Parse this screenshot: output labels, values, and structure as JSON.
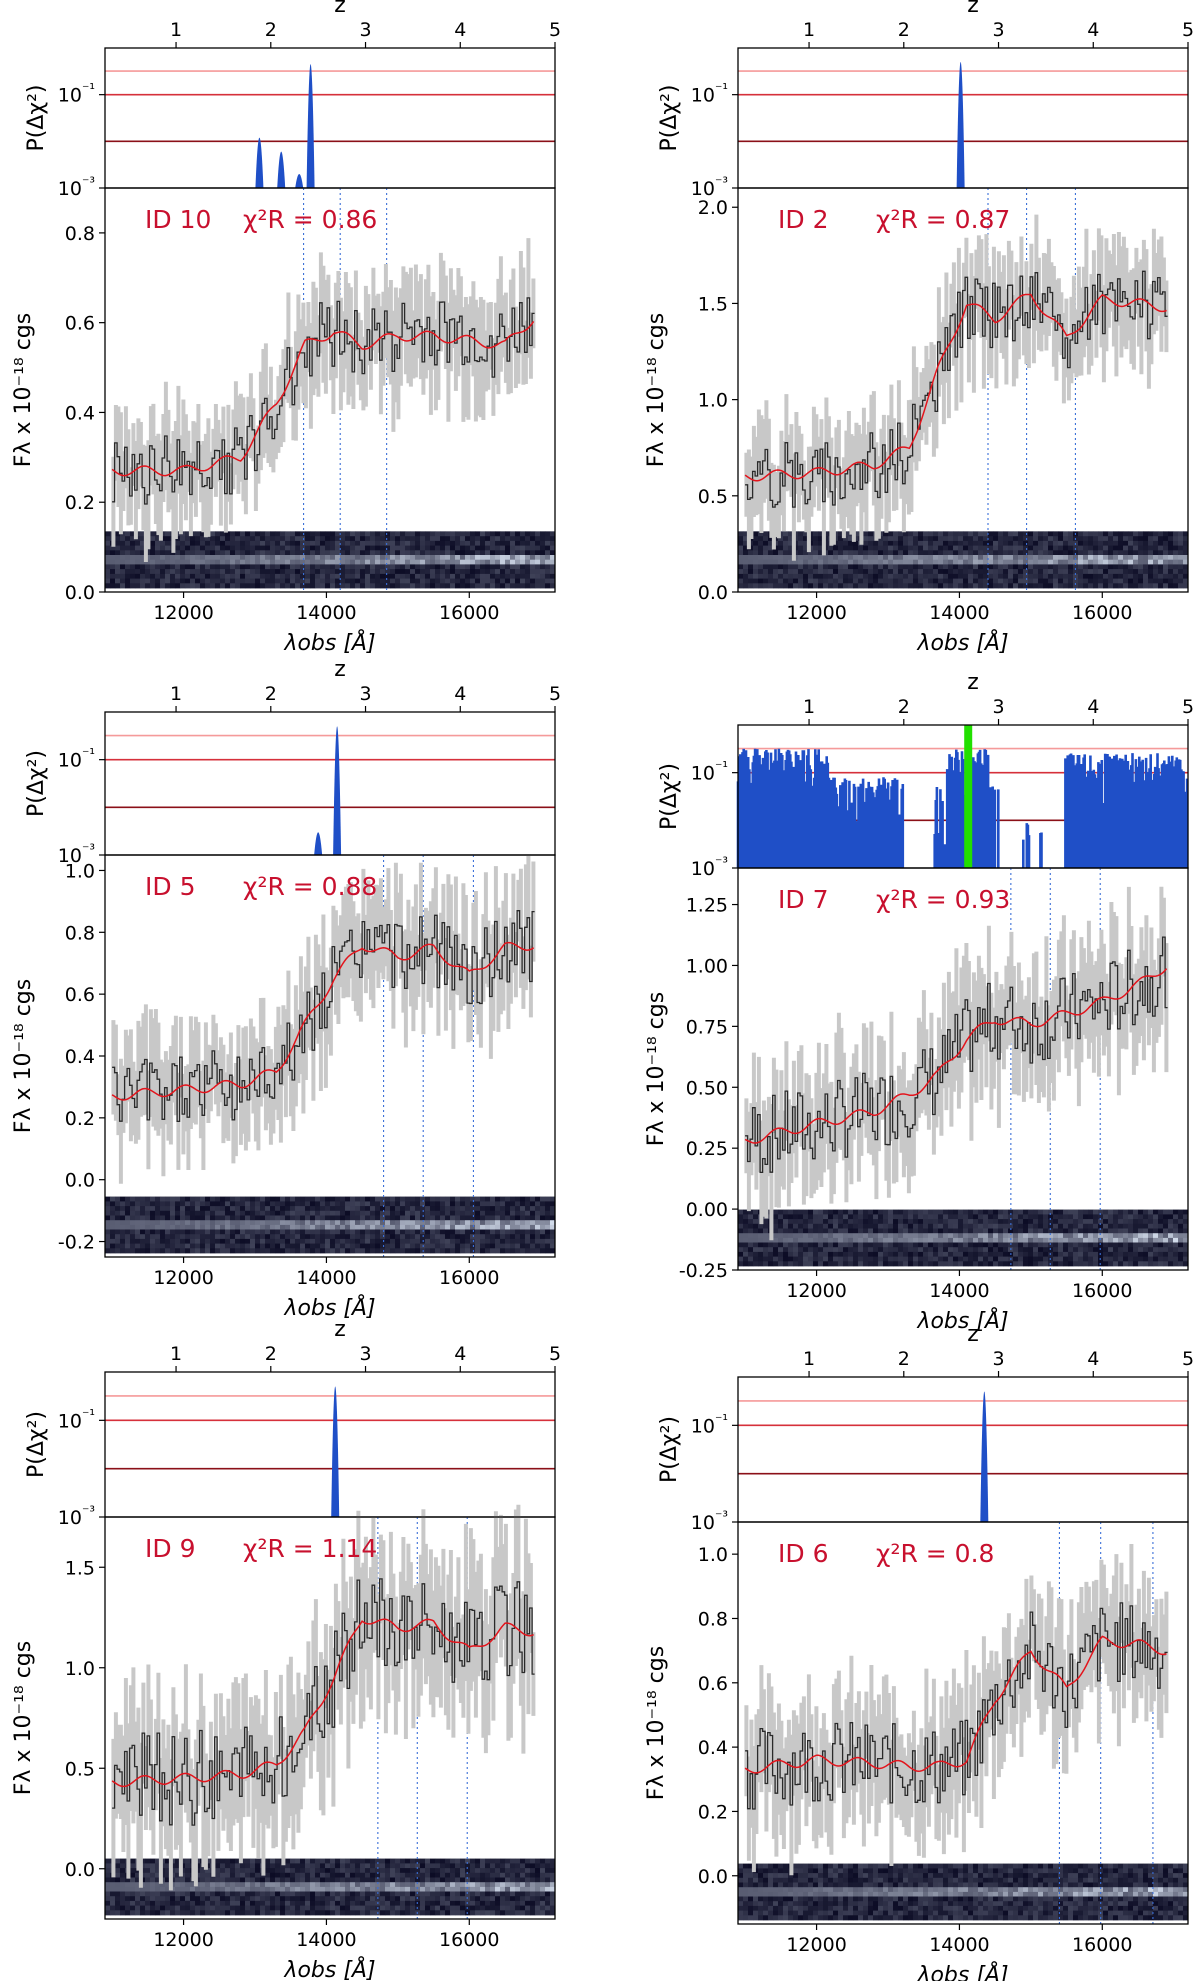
{
  "figure": {
    "z_axis_label": "z",
    "p_axis_label": "P(Δχ²)",
    "flux_axis_label": "Fλ x 10⁻¹⁸ cgs",
    "wave_axis_label": "λobs [Å]",
    "p_ticks": [
      "10⁻¹",
      "10⁻³"
    ],
    "z_ticks": [
      "1",
      "2",
      "3",
      "4",
      "5"
    ],
    "wave_ticks": [
      "12000",
      "14000",
      "16000"
    ],
    "colors": {
      "pz_hist": "#1f4fc7",
      "pz_best": "#22e000",
      "model": "#e3141c",
      "data_line": "#2a2a2a",
      "errbar": "#c8c8c8",
      "annot": "#c8102e",
      "spec_line": "#3a6fd8"
    }
  },
  "chart_data": [
    {
      "type": "line",
      "title": "",
      "id_label": "ID 10",
      "chi2_label": "χ²R = 0.86",
      "xlabel": "λobs [Å]",
      "ylabel": "Fλ x 10⁻¹⁸ cgs",
      "xlim": [
        10900,
        17200
      ],
      "ylim": [
        0.0,
        0.9
      ],
      "y_ticks": [
        "0.0",
        "0.2",
        "0.4",
        "0.6",
        "0.8"
      ],
      "y_tick_values": [
        0.0,
        0.2,
        0.4,
        0.6,
        0.8
      ],
      "z_peaks": [
        {
          "z": 1.88,
          "p": 0.012
        },
        {
          "z": 2.11,
          "p": 0.006
        },
        {
          "z": 2.3,
          "p": 0.002
        },
        {
          "z": 2.42,
          "p": 0.45
        }
      ],
      "line_markers_z": 2.42,
      "model": {
        "x": [
          11000,
          12000,
          12800,
          13300,
          13700,
          14100,
          14500,
          15000,
          15500,
          16000,
          16500,
          16900
        ],
        "y": [
          0.27,
          0.27,
          0.3,
          0.42,
          0.55,
          0.58,
          0.55,
          0.57,
          0.57,
          0.56,
          0.55,
          0.61
        ]
      },
      "data_seed": 10,
      "noise": 0.08
    },
    {
      "type": "line",
      "title": "",
      "id_label": "ID 2",
      "chi2_label": "χ²R = 0.87",
      "xlabel": "λobs [Å]",
      "ylabel": "Fλ x 10⁻¹⁸ cgs",
      "xlim": [
        10900,
        17200
      ],
      "ylim": [
        0.0,
        2.1
      ],
      "y_ticks": [
        "0.0",
        "0.5",
        "1.0",
        "1.5",
        "2.0"
      ],
      "y_tick_values": [
        0.0,
        0.5,
        1.0,
        1.5,
        2.0
      ],
      "z_peaks": [
        {
          "z": 2.6,
          "p": 0.5
        }
      ],
      "line_markers_z": 2.6,
      "model": {
        "x": [
          11000,
          12000,
          12800,
          13300,
          13700,
          14100,
          14500,
          15000,
          15500,
          16000,
          16500,
          16900
        ],
        "y": [
          0.6,
          0.62,
          0.66,
          0.75,
          1.15,
          1.5,
          1.42,
          1.55,
          1.32,
          1.52,
          1.5,
          1.48
        ]
      },
      "data_seed": 2,
      "noise": 0.18
    },
    {
      "type": "line",
      "title": "",
      "id_label": "ID 5",
      "chi2_label": "χ²R = 0.88",
      "xlabel": "λobs [Å]",
      "ylabel": "Fλ x 10⁻¹⁸ cgs",
      "xlim": [
        10900,
        17200
      ],
      "ylim": [
        -0.25,
        1.05
      ],
      "y_ticks": [
        "-0.2",
        "0.0",
        "0.2",
        "0.4",
        "0.6",
        "0.8",
        "1.0"
      ],
      "y_tick_values": [
        -0.2,
        0.0,
        0.2,
        0.4,
        0.6,
        0.8,
        1.0
      ],
      "z_peaks": [
        {
          "z": 2.5,
          "p": 0.003
        },
        {
          "z": 2.7,
          "p": 0.5
        }
      ],
      "line_markers_z": 2.7,
      "model": {
        "x": [
          11000,
          12000,
          12800,
          13300,
          13700,
          14100,
          14500,
          15000,
          15500,
          16000,
          16500,
          16900
        ],
        "y": [
          0.27,
          0.29,
          0.31,
          0.35,
          0.5,
          0.65,
          0.76,
          0.72,
          0.75,
          0.66,
          0.75,
          0.76
        ]
      },
      "data_seed": 5,
      "noise": 0.12
    },
    {
      "type": "line",
      "title": "",
      "id_label": "ID 7",
      "chi2_label": "χ²R = 0.93",
      "xlabel": "λobs [Å]",
      "ylabel": "Fλ x 10⁻¹⁸ cgs",
      "xlim": [
        10900,
        17200
      ],
      "ylim": [
        -0.25,
        1.4
      ],
      "y_ticks": [
        "-0.25",
        "0.00",
        "0.25",
        "0.50",
        "0.75",
        "1.00",
        "1.25"
      ],
      "y_tick_values": [
        -0.25,
        0.0,
        0.25,
        0.5,
        0.75,
        1.0,
        1.25
      ],
      "z_peaks": [],
      "pz_noisy": true,
      "best_z": 2.68,
      "line_markers_z": 2.68,
      "model": {
        "x": [
          11000,
          12000,
          12800,
          13300,
          13700,
          14100,
          14500,
          15000,
          15500,
          16000,
          16500,
          16900
        ],
        "y": [
          0.28,
          0.35,
          0.4,
          0.47,
          0.55,
          0.7,
          0.78,
          0.76,
          0.8,
          0.85,
          0.92,
          1.0
        ]
      },
      "data_seed": 7,
      "noise": 0.17
    },
    {
      "type": "line",
      "title": "",
      "id_label": "ID 9",
      "chi2_label": "χ²R = 1.14",
      "xlabel": "λobs [Å]",
      "ylabel": "Fλ x 10⁻¹⁸ cgs",
      "xlim": [
        10900,
        17200
      ],
      "ylim": [
        -0.25,
        1.75
      ],
      "y_ticks": [
        "0.0",
        "0.5",
        "1.0",
        "1.5"
      ],
      "y_tick_values": [
        0.0,
        0.5,
        1.0,
        1.5
      ],
      "z_peaks": [
        {
          "z": 2.68,
          "p": 0.5
        }
      ],
      "line_markers_z": 2.68,
      "model": {
        "x": [
          11000,
          12000,
          12800,
          13300,
          13700,
          14100,
          14500,
          15000,
          15500,
          16000,
          16500,
          16900
        ],
        "y": [
          0.43,
          0.45,
          0.47,
          0.52,
          0.68,
          0.95,
          1.25,
          1.2,
          1.22,
          1.08,
          1.2,
          1.18
        ]
      },
      "data_seed": 9,
      "noise": 0.24
    },
    {
      "type": "line",
      "title": "",
      "id_label": "ID 6",
      "chi2_label": "χ²R = 0.8",
      "xlabel": "λobs [Å]",
      "ylabel": "Fλ x 10⁻¹⁸ cgs",
      "xlim": [
        10900,
        17200
      ],
      "ylim": [
        -0.15,
        1.1
      ],
      "y_ticks": [
        "0.0",
        "0.2",
        "0.4",
        "0.6",
        "0.8",
        "1.0"
      ],
      "y_tick_values": [
        0.0,
        0.2,
        0.4,
        0.6,
        0.8,
        1.0
      ],
      "z_peaks": [
        {
          "z": 2.85,
          "p": 0.5
        }
      ],
      "line_markers_z": 2.85,
      "model": {
        "x": [
          11000,
          12000,
          12800,
          13300,
          13700,
          14100,
          14500,
          15000,
          15500,
          16000,
          16500,
          16900
        ],
        "y": [
          0.33,
          0.36,
          0.35,
          0.34,
          0.34,
          0.36,
          0.55,
          0.7,
          0.58,
          0.73,
          0.72,
          0.7
        ]
      },
      "data_seed": 6,
      "noise": 0.13
    }
  ]
}
